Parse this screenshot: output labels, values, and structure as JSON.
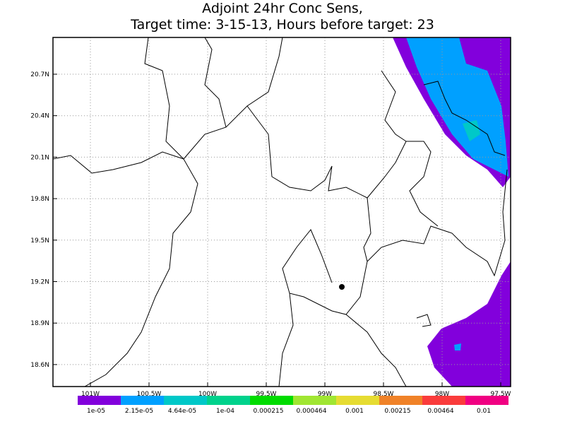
{
  "title": {
    "line1": "Adjoint 24hr Conc Sens,",
    "line2": "Target time: 3-15-13, Hours before target: 23"
  },
  "map": {
    "lat_labels": [
      "20.7N",
      "20.4N",
      "20.1N",
      "19.8N",
      "19.5N",
      "19.2N",
      "18.9N",
      "18.6N"
    ],
    "lon_labels": [
      "101W",
      "100.5W",
      "100W",
      "99.5W",
      "99W",
      "98.5W",
      "98W",
      "97.5W"
    ]
  },
  "colorbar": {
    "colors": [
      "#8200dc",
      "#00a0ff",
      "#00c8c8",
      "#00d28c",
      "#00dc00",
      "#a0e632",
      "#e6dc32",
      "#f08228",
      "#fa3c3c",
      "#f00082"
    ],
    "labels": [
      "1e-05",
      "2.15e-05",
      "4.64e-05",
      "1e-04",
      "0.000215",
      "0.000464",
      "0.001",
      "0.00215",
      "0.00464",
      "0.01"
    ]
  }
}
